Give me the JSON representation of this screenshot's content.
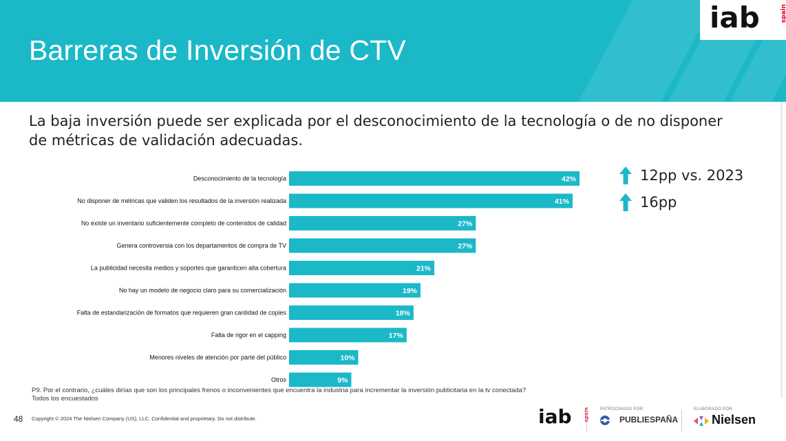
{
  "title": "Barreras de Inversión de CTV",
  "subtitle": "La baja inversión puede ser explicada por el desconocimiento de la tecnología o de no disponer de métricas de validación adecuadas.",
  "logo": {
    "text": "iab",
    "sub": "spain"
  },
  "chart_data": {
    "type": "bar",
    "orientation": "horizontal",
    "categories": [
      "Desconocimiento de la tecnología",
      "No disponer de métricas que validen los resultados de la inversión realizada",
      "No existe un inventario suficientemente completo de contenidos de calidad",
      "Genera controversia con los departamentos de compra de TV",
      "La publicidad necesita medios y soportes que garanticen alta cobertura",
      "No hay un modelo de negocio claro para su comercialización",
      "Falta de estandarización de formatos que requieren gran cantidad de copies",
      "Falta de rigor en el capping",
      "Menores niveles de atención por parte del público",
      "Otros"
    ],
    "values": [
      42,
      41,
      27,
      27,
      21,
      19,
      18,
      17,
      10,
      9
    ],
    "value_labels": [
      "42%",
      "41%",
      "27%",
      "27%",
      "21%",
      "19%",
      "18%",
      "17%",
      "10%",
      "9%"
    ],
    "bar_color": "#1bb8c8",
    "xlim": [
      0,
      42
    ]
  },
  "annotations": [
    {
      "icon": "arrow-up-icon",
      "text": "12pp vs. 2023"
    },
    {
      "icon": "arrow-up-icon",
      "text": "16pp"
    }
  ],
  "footnote": {
    "question": "P9. Por el contrario, ¿cuáles dirías que son los principales frenos o inconvenientes que encuentra la industria para incrementar la inversión publicitaria en la tv conectada?",
    "base": "Todos los encuestados"
  },
  "footer": {
    "page_number": "48",
    "copyright": "Copyright © 2024 The Nielsen Company (US), LLC. Confidential and proprietary. Do not distribute.",
    "sponsored_caption": "PATROCINADO POR:",
    "sponsor_name": "PUBLIESPAÑA",
    "prepared_caption": "ELABORADO POR:",
    "prepared_name": "Nielsen"
  },
  "colors": {
    "accent": "#1bb8c8",
    "arrow": "#1bb8c8",
    "logo_red": "#e3001b"
  }
}
